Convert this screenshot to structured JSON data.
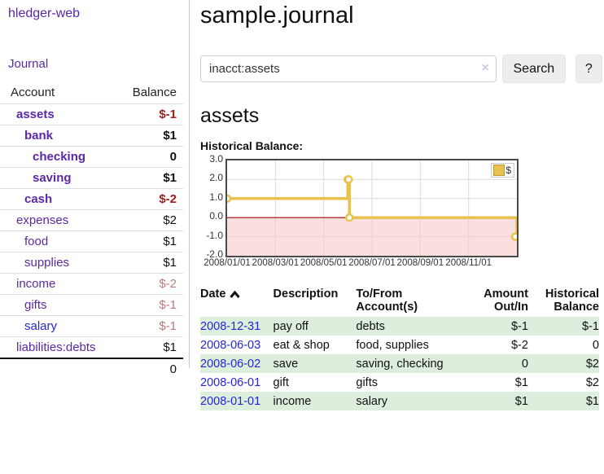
{
  "sidebar": {
    "brand": "hledger-web",
    "journal_link": "Journal",
    "accounts": {
      "col_account": "Account",
      "col_balance": "Balance",
      "rows": [
        {
          "name": "assets",
          "indent": 1,
          "bold": true,
          "balance": "$-1"
        },
        {
          "name": "bank",
          "indent": 2,
          "bold": true,
          "balance": "$1"
        },
        {
          "name": "checking",
          "indent": 3,
          "bold": true,
          "balance": "0"
        },
        {
          "name": "saving",
          "indent": 3,
          "bold": true,
          "balance": "$1"
        },
        {
          "name": "cash",
          "indent": 2,
          "bold": true,
          "balance": "$-2"
        },
        {
          "name": "expenses",
          "indent": 1,
          "bold": false,
          "balance": "$2"
        },
        {
          "name": "food",
          "indent": 2,
          "bold": false,
          "balance": "$1"
        },
        {
          "name": "supplies",
          "indent": 2,
          "bold": false,
          "balance": "$1"
        },
        {
          "name": "income",
          "indent": 1,
          "bold": false,
          "balance": "$-2"
        },
        {
          "name": "gifts",
          "indent": 2,
          "bold": false,
          "balance": "$-1"
        },
        {
          "name": "salary",
          "indent": 2,
          "bold": false,
          "balance": "$-1",
          "link_blue": true
        },
        {
          "name": "liabilities:debts",
          "indent": 1,
          "bold": false,
          "balance": "$1"
        }
      ],
      "total": "0"
    }
  },
  "header": {
    "title": "sample.journal"
  },
  "search": {
    "query": "inacct:assets",
    "clear_icon": "×",
    "search_label": "Search",
    "help_label": "?"
  },
  "account_page": {
    "heading": "assets",
    "chart_label": "Historical Balance:"
  },
  "chart_data": {
    "type": "line",
    "step": true,
    "title": "Historical Balance:",
    "x_range": [
      "2008-01-01",
      "2008-12-31"
    ],
    "ylim": [
      -2,
      3
    ],
    "y_ticks": [
      3.0,
      2.0,
      1.0,
      0.0,
      -1.0,
      -2.0
    ],
    "y_tick_labels": [
      "3.0",
      "2.0",
      "1.0",
      "0.0",
      "-1.0",
      "-2.0"
    ],
    "x_tick_labels": [
      "2008/01/01",
      "2008/03/01",
      "2008/05/01",
      "2008/07/01",
      "2008/09/01",
      "2008/11/01"
    ],
    "grid": true,
    "legend_position": "top-right",
    "legend": {
      "label": "$",
      "swatch_color": "#e8c24e"
    },
    "line_color": "#e8c24e",
    "marker_fill": "#ffffff",
    "grid_color": "#d9d9d9",
    "negative_region_color": "rgba(248,201,201,0.6)",
    "zero_line_color": "#990000",
    "series": [
      {
        "name": "$",
        "points": [
          [
            "2008-01-01",
            1
          ],
          [
            "2008-06-01",
            2
          ],
          [
            "2008-06-02",
            2
          ],
          [
            "2008-06-03",
            0
          ],
          [
            "2008-12-31",
            -1
          ]
        ]
      }
    ]
  },
  "register": {
    "columns": [
      "Date",
      "Description",
      "To/From Account(s)",
      "Amount Out/In",
      "Historical Balance"
    ],
    "rows": [
      {
        "date": "2008-12-31",
        "description": "pay off",
        "accounts": "debts",
        "amount": "$-1",
        "balance": "$-1"
      },
      {
        "date": "2008-06-03",
        "description": "eat & shop",
        "accounts": "food, supplies",
        "amount": "$-2",
        "balance": "0"
      },
      {
        "date": "2008-06-02",
        "description": "save",
        "accounts": "saving, checking",
        "amount": "0",
        "balance": "$2"
      },
      {
        "date": "2008-06-01",
        "description": "gift",
        "accounts": "gifts",
        "amount": "$1",
        "balance": "$2"
      },
      {
        "date": "2008-01-01",
        "description": "income",
        "accounts": "salary",
        "amount": "$1",
        "balance": "$1"
      }
    ]
  },
  "colors": {
    "accent_purple": "#5b28a8",
    "link_blue": "#2626d9",
    "negative_strong": "#a01c1c",
    "negative_muted": "#bd7b7b",
    "row_stripe_green": "#ddeedd"
  }
}
